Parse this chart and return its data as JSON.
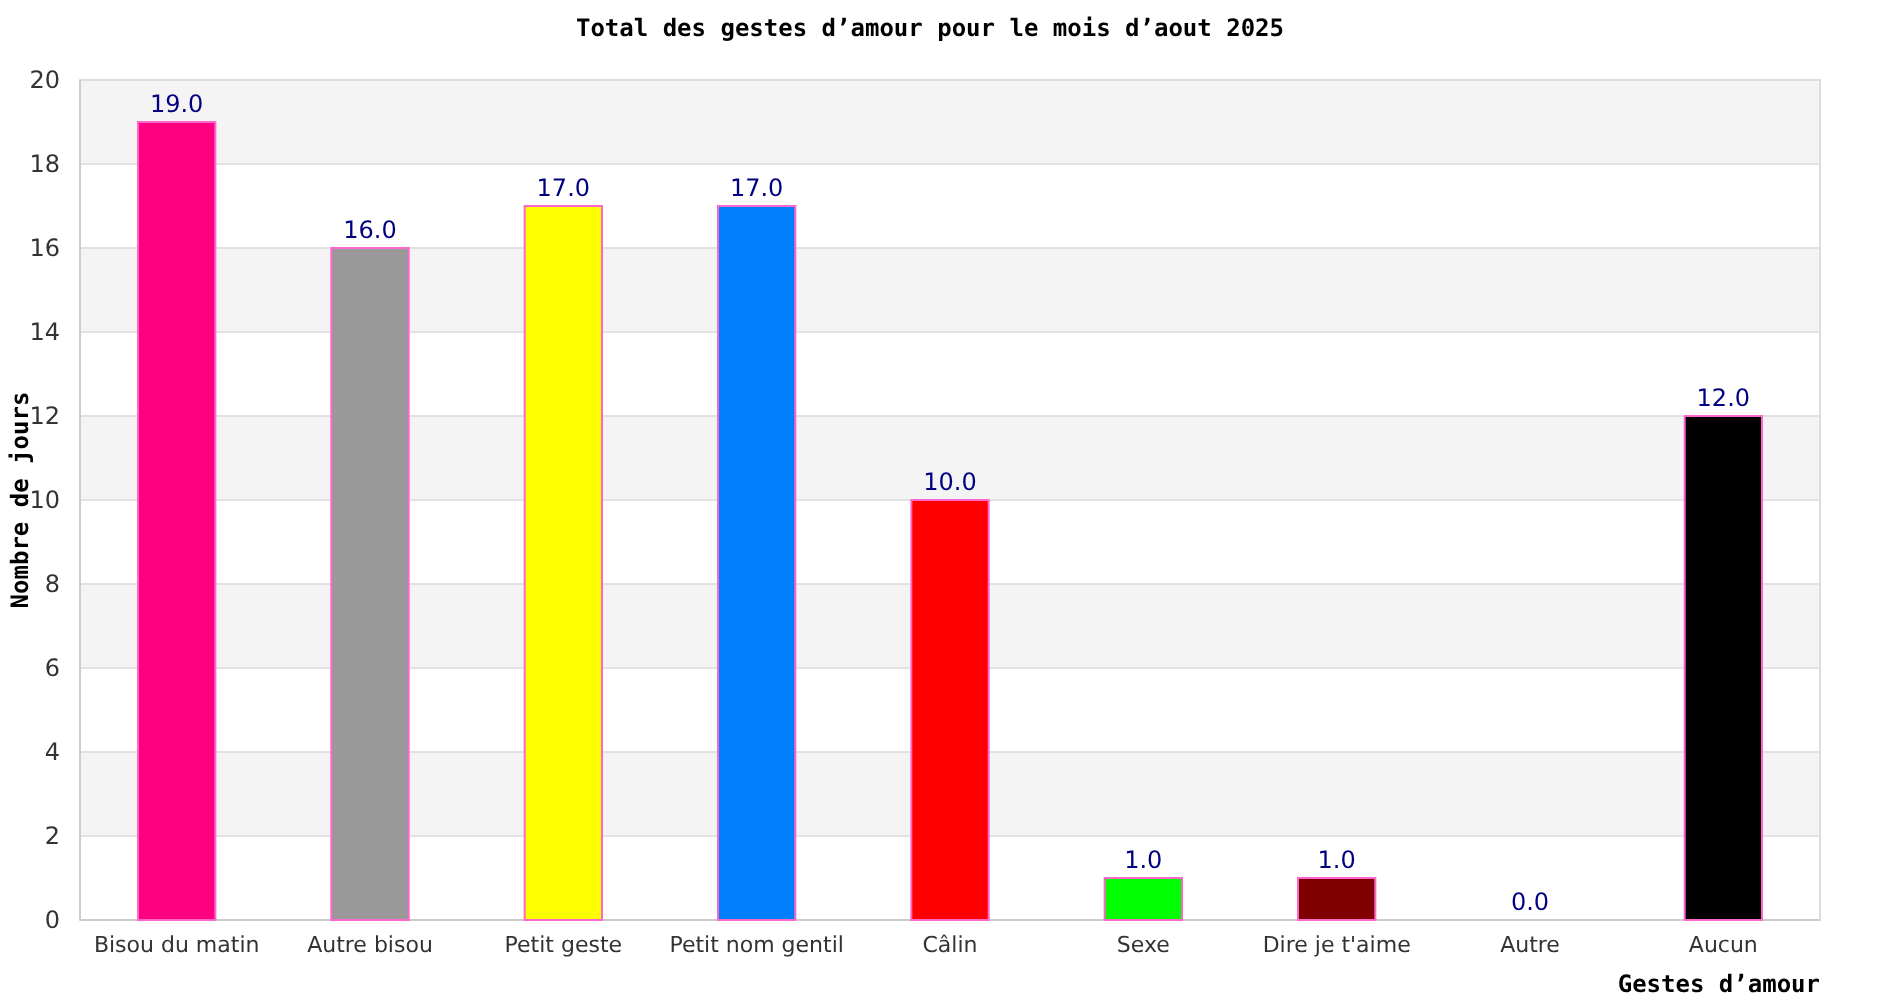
{
  "chart_data": {
    "type": "bar",
    "title": "Total des gestes d’amour pour le mois d’aout 2025",
    "xlabel": "Gestes d’amour",
    "ylabel": "Nombre de jours",
    "categories": [
      "Bisou du matin",
      "Autre bisou",
      "Petit geste",
      "Petit nom gentil",
      "Câlin",
      "Sexe",
      "Dire je t'aime",
      "Autre",
      "Aucun"
    ],
    "values": [
      19.0,
      16.0,
      17.0,
      17.0,
      10.0,
      1.0,
      1.0,
      0.0,
      12.0
    ],
    "colors": [
      "#ff0080",
      "#999999",
      "#ffff00",
      "#0080ff",
      "#ff0000",
      "#00ff00",
      "#800000",
      "#ff8000",
      "#000000"
    ],
    "value_labels": [
      "19.0",
      "16.0",
      "17.0",
      "17.0",
      "10.0",
      "1.0",
      "1.0",
      "0.0",
      "12.0"
    ],
    "ylim": [
      0,
      20
    ],
    "yticks": [
      0,
      2,
      4,
      6,
      8,
      10,
      12,
      14,
      16,
      18,
      20
    ],
    "grid": "y"
  }
}
